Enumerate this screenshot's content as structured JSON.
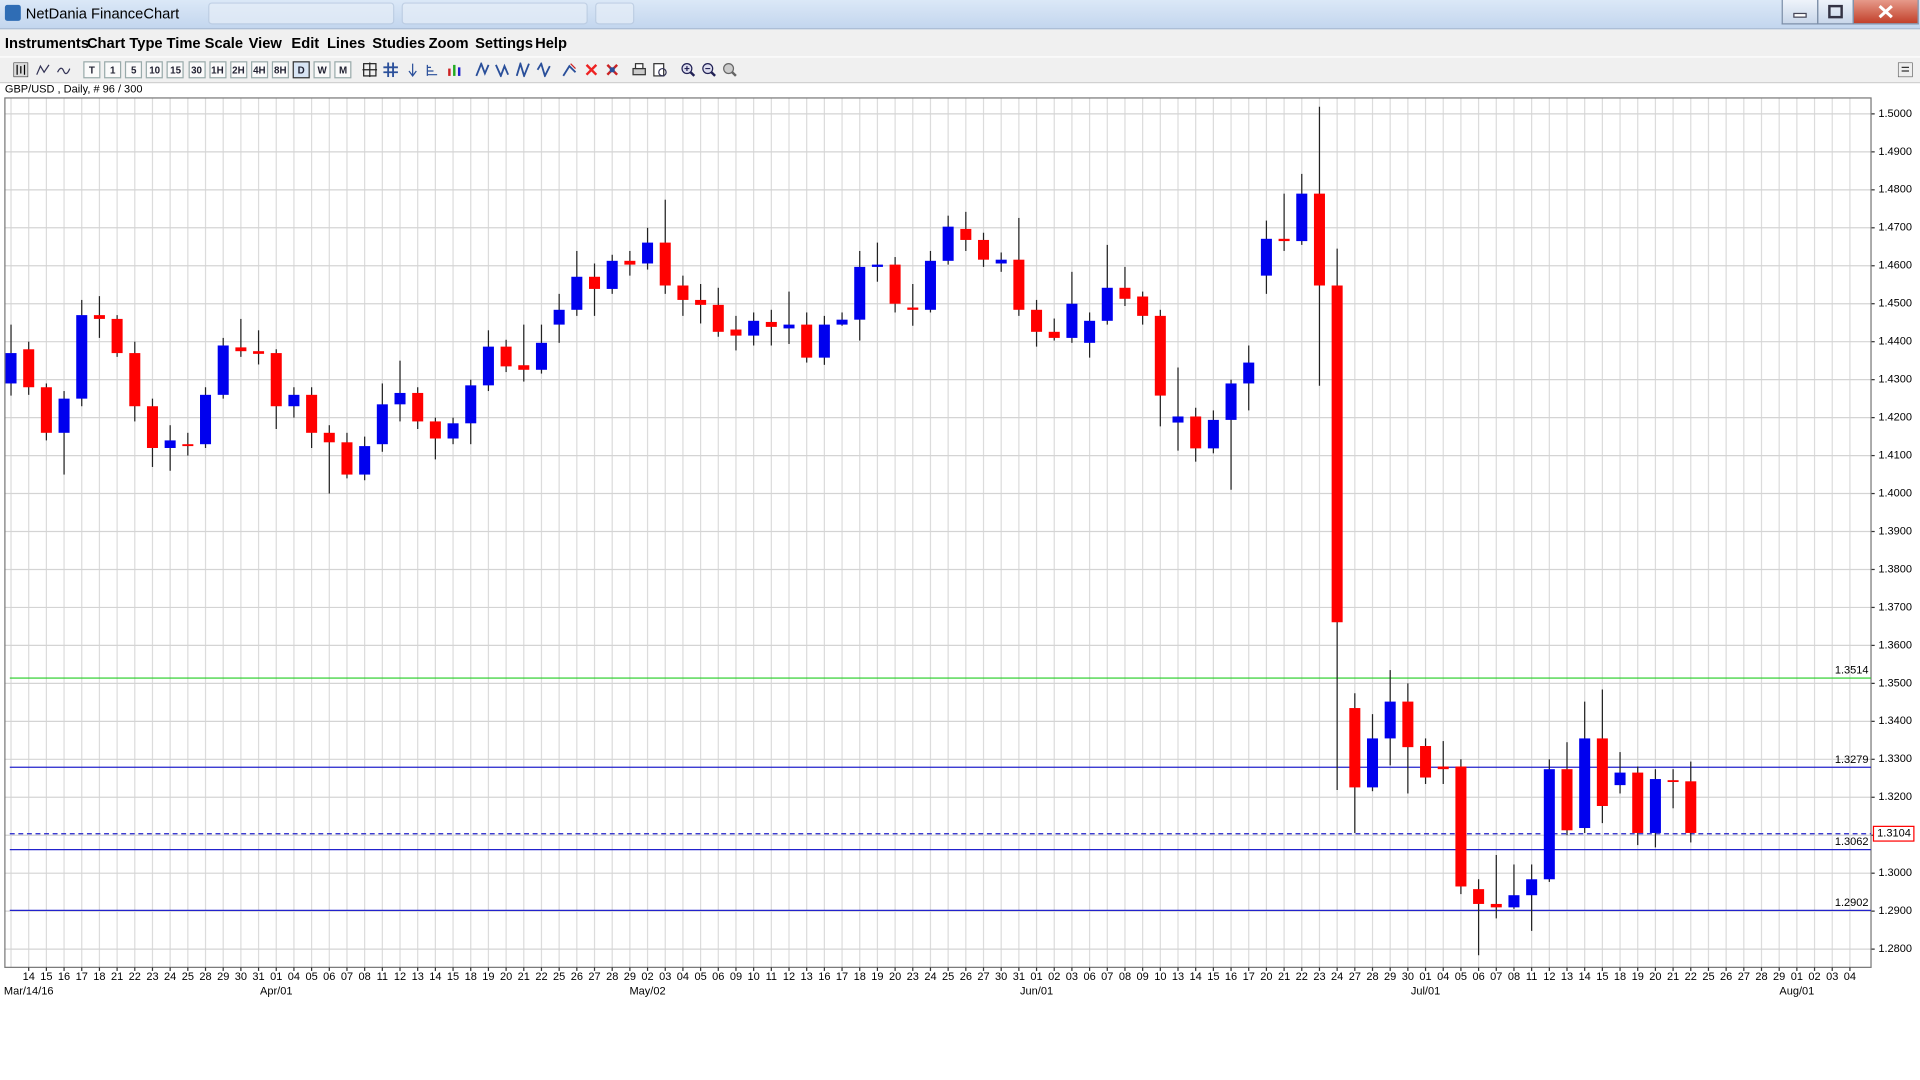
{
  "window": {
    "title": "NetDania FinanceChart"
  },
  "menu": [
    "Instruments",
    "Chart Type",
    "Time Scale",
    "View",
    "Edit",
    "Lines",
    "Studies",
    "Zoom",
    "Settings",
    "Help"
  ],
  "toolbar": {
    "timeframes": [
      "T",
      "1",
      "5",
      "10",
      "15",
      "30",
      "1H",
      "2H",
      "4H",
      "8H",
      "D",
      "W",
      "M"
    ]
  },
  "chart_data": {
    "type": "candlestick",
    "title": "GBP/USD , Daily, # 96 / 300",
    "categories": [
      null,
      "14",
      "15",
      "16",
      "17",
      "18",
      "21",
      "22",
      "23",
      "24",
      "25",
      "28",
      "29",
      "30",
      "31",
      "01",
      "04",
      "05",
      "06",
      "07",
      "08",
      "11",
      "12",
      "13",
      "14",
      "15",
      "18",
      "19",
      "20",
      "21",
      "22",
      "25",
      "26",
      "27",
      "28",
      "29",
      "02",
      "03",
      "04",
      "05",
      "06",
      "09",
      "10",
      "11",
      "12",
      "13",
      "16",
      "17",
      "18",
      "19",
      "20",
      "23",
      "24",
      "25",
      "26",
      "27",
      "30",
      "31",
      "01",
      "02",
      "03",
      "06",
      "07",
      "08",
      "09",
      "10",
      "13",
      "14",
      "15",
      "16",
      "17",
      "20",
      "21",
      "22",
      "23",
      "24",
      "27",
      "28",
      "29",
      "30",
      "01",
      "04",
      "05",
      "06",
      "07",
      "08",
      "11",
      "12",
      "13",
      "14",
      "15",
      "18",
      "19",
      "20",
      "21",
      "22",
      "25",
      "26",
      "27",
      "28",
      "29",
      "01",
      "02",
      "03",
      "04"
    ],
    "month_labels": [
      null,
      "Mar/14/16",
      null,
      null,
      null,
      null,
      null,
      null,
      null,
      null,
      null,
      null,
      null,
      null,
      null,
      "Apr/01",
      null,
      null,
      null,
      null,
      null,
      null,
      null,
      null,
      null,
      null,
      null,
      null,
      null,
      null,
      null,
      null,
      null,
      null,
      null,
      null,
      "May/02",
      null,
      null,
      null,
      null,
      null,
      null,
      null,
      null,
      null,
      null,
      null,
      null,
      null,
      null,
      null,
      null,
      null,
      null,
      null,
      null,
      null,
      "Jun/01",
      null,
      null,
      null,
      null,
      null,
      null,
      null,
      null,
      null,
      null,
      null,
      null,
      null,
      null,
      null,
      null,
      null,
      null,
      null,
      null,
      null,
      "Jul/01",
      null,
      null,
      null,
      null,
      null,
      null,
      null,
      null,
      null,
      null,
      null,
      null,
      null,
      null,
      null,
      null,
      null,
      null,
      null,
      null,
      "Aug/01",
      null,
      null,
      null
    ],
    "open": [
      1.429,
      1.438,
      1.428,
      1.416,
      1.425,
      1.447,
      1.446,
      1.437,
      1.423,
      1.412,
      1.413,
      1.413,
      1.426,
      1.4385,
      1.4375,
      1.437,
      1.423,
      1.426,
      1.416,
      1.4135,
      1.405,
      1.413,
      1.4235,
      1.4265,
      1.419,
      1.4145,
      1.4185,
      1.4285,
      1.4387,
      1.4338,
      1.4326,
      1.4445,
      1.4484,
      1.4571,
      1.4539,
      1.4613,
      1.4606,
      1.4661,
      1.4548,
      1.451,
      1.4497,
      1.4432,
      1.4416,
      1.4452,
      1.4435,
      1.4445,
      1.4358,
      1.4445,
      1.4458,
      1.4597,
      1.4603,
      1.449,
      1.4484,
      1.4613,
      1.4697,
      1.4668,
      1.4606,
      1.4616,
      1.4484,
      1.4426,
      1.441,
      1.4397,
      1.4455,
      1.4542,
      1.4519,
      1.4468,
      1.4187,
      1.4203,
      1.4119,
      1.4194,
      1.429,
      1.4574,
      1.4671,
      1.4665,
      1.479,
      1.4548,
      1.3435,
      1.3226,
      1.3355,
      1.3452,
      1.3335,
      1.3281,
      1.3281,
      1.2958,
      1.2919,
      1.291,
      1.2942,
      1.2984,
      1.3274,
      1.3119,
      1.3355,
      1.3232,
      1.3265,
      1.3106,
      1.3245,
      1.3242,
      null,
      null,
      null,
      null,
      null,
      null,
      null,
      null,
      null
    ],
    "high": [
      1.4445,
      1.44,
      1.429,
      1.427,
      1.451,
      1.452,
      1.447,
      1.44,
      1.425,
      1.418,
      1.416,
      1.428,
      1.441,
      1.446,
      1.443,
      1.438,
      1.428,
      1.428,
      1.418,
      1.416,
      1.415,
      1.429,
      1.435,
      1.428,
      1.42,
      1.42,
      1.43,
      1.443,
      1.4405,
      1.4445,
      1.4445,
      1.4526,
      1.4639,
      1.4606,
      1.4629,
      1.4639,
      1.47,
      1.4774,
      1.4574,
      1.4552,
      1.4542,
      1.4468,
      1.4477,
      1.4484,
      1.4532,
      1.4477,
      1.4468,
      1.4477,
      1.4639,
      1.4661,
      1.4623,
      1.4552,
      1.4639,
      1.4732,
      1.4742,
      1.4687,
      1.4635,
      1.4726,
      1.451,
      1.4461,
      1.4584,
      1.4477,
      1.4655,
      1.4597,
      1.4532,
      1.4484,
      1.4332,
      1.4226,
      1.4219,
      1.43,
      1.439,
      1.4719,
      1.479,
      1.4842,
      1.5019,
      1.4645,
      1.3474,
      1.3419,
      1.3535,
      1.35,
      1.3355,
      1.3348,
      1.33,
      1.2984,
      1.3048,
      1.3023,
      1.3023,
      1.33,
      1.3345,
      1.3452,
      1.3484,
      1.3319,
      1.3281,
      1.3274,
      1.3274,
      1.3294,
      null,
      null,
      null,
      null,
      null,
      null,
      null,
      null,
      null
    ],
    "low": [
      1.4258,
      1.426,
      1.414,
      1.405,
      1.423,
      1.441,
      1.436,
      1.419,
      1.407,
      1.406,
      1.41,
      1.412,
      1.425,
      1.436,
      1.434,
      1.417,
      1.42,
      1.412,
      1.4,
      1.404,
      1.4035,
      1.411,
      1.419,
      1.417,
      1.409,
      1.413,
      1.413,
      1.427,
      1.432,
      1.4295,
      1.4316,
      1.4397,
      1.4468,
      1.4468,
      1.4526,
      1.4574,
      1.459,
      1.4526,
      1.4468,
      1.4448,
      1.4413,
      1.4377,
      1.439,
      1.439,
      1.4394,
      1.4345,
      1.4339,
      1.4442,
      1.4403,
      1.4558,
      1.4477,
      1.4442,
      1.4477,
      1.4603,
      1.4639,
      1.4597,
      1.4584,
      1.4468,
      1.4387,
      1.4403,
      1.4397,
      1.4358,
      1.4445,
      1.4494,
      1.4445,
      1.4177,
      1.4113,
      1.4084,
      1.4106,
      1.401,
      1.4219,
      1.4526,
      1.4639,
      1.4655,
      1.4284,
      1.3219,
      1.3106,
      1.3216,
      1.3284,
      1.321,
      1.3235,
      1.3235,
      1.2945,
      1.2784,
      1.2881,
      1.2906,
      1.2848,
      1.2977,
      1.31,
      1.3106,
      1.3132,
      1.321,
      1.3074,
      1.3068,
      1.3171,
      1.3081,
      null,
      null,
      null,
      null,
      null,
      null,
      null,
      null,
      null
    ],
    "close": [
      1.437,
      1.428,
      1.416,
      1.425,
      1.447,
      1.446,
      1.437,
      1.423,
      1.412,
      1.414,
      1.4125,
      1.426,
      1.439,
      1.4375,
      1.4368,
      1.423,
      1.426,
      1.416,
      1.4135,
      1.405,
      1.4125,
      1.4235,
      1.4265,
      1.419,
      1.4145,
      1.4185,
      1.4285,
      1.4387,
      1.4335,
      1.4326,
      1.4397,
      1.4484,
      1.4571,
      1.4539,
      1.4613,
      1.4603,
      1.4661,
      1.4548,
      1.451,
      1.4497,
      1.4426,
      1.4416,
      1.4455,
      1.4439,
      1.4445,
      1.4358,
      1.4445,
      1.4458,
      1.4597,
      1.4603,
      1.45,
      1.4484,
      1.4613,
      1.4703,
      1.4668,
      1.4616,
      1.4616,
      1.4484,
      1.4426,
      1.441,
      1.45,
      1.4455,
      1.4542,
      1.4513,
      1.4468,
      1.4258,
      1.4203,
      1.4119,
      1.4194,
      1.429,
      1.4345,
      1.4671,
      1.4665,
      1.479,
      1.4548,
      1.3661,
      1.3226,
      1.3355,
      1.3452,
      1.3332,
      1.3252,
      1.3274,
      1.2965,
      1.2919,
      1.291,
      1.2942,
      1.2984,
      1.3274,
      1.3113,
      1.3355,
      1.3177,
      1.3265,
      1.3106,
      1.3248,
      1.3242,
      1.3106,
      null,
      null,
      null,
      null,
      null,
      null,
      null,
      null,
      null
    ],
    "up_color": "#0000ee",
    "down_color": "#ff0000",
    "ylim": [
      1.2752,
      1.5042
    ],
    "yticks": [
      {
        "value": 1.28,
        "label": "1.2800"
      },
      {
        "value": 1.29,
        "label": "1.2900"
      },
      {
        "value": 1.3,
        "label": "1.3000"
      },
      {
        "value": 1.31,
        "label": "1.3100"
      },
      {
        "value": 1.32,
        "label": "1.3200"
      },
      {
        "value": 1.33,
        "label": "1.3300"
      },
      {
        "value": 1.34,
        "label": "1.3400"
      },
      {
        "value": 1.35,
        "label": "1.3500"
      },
      {
        "value": 1.36,
        "label": "1.3600"
      },
      {
        "value": 1.37,
        "label": "1.3700"
      },
      {
        "value": 1.38,
        "label": "1.3800"
      },
      {
        "value": 1.39,
        "label": "1.3900"
      },
      {
        "value": 1.4,
        "label": "1.4000"
      },
      {
        "value": 1.41,
        "label": "1.4100"
      },
      {
        "value": 1.42,
        "label": "1.4200"
      },
      {
        "value": 1.43,
        "label": "1.4300"
      },
      {
        "value": 1.44,
        "label": "1.4400"
      },
      {
        "value": 1.45,
        "label": "1.4500"
      },
      {
        "value": 1.46,
        "label": "1.4600"
      },
      {
        "value": 1.47,
        "label": "1.4700"
      },
      {
        "value": 1.48,
        "label": "1.4800"
      },
      {
        "value": 1.49,
        "label": "1.4900"
      },
      {
        "value": 1.5,
        "label": "1.5000"
      }
    ],
    "grid": true,
    "levels": [
      {
        "value": 1.3514,
        "color": "#22cc22",
        "style": "solid",
        "label_box": false
      },
      {
        "value": 1.3279,
        "color": "#2222cc",
        "style": "solid",
        "label_box": false
      },
      {
        "value": 1.3104,
        "color": "#2222cc",
        "style": "dashed",
        "label_box": true,
        "label_color": "#ff0000"
      },
      {
        "value": 1.3062,
        "color": "#2222cc",
        "style": "solid",
        "label_box": false
      },
      {
        "value": 1.2902,
        "color": "#2222cc",
        "style": "solid",
        "label_box": false
      }
    ]
  }
}
